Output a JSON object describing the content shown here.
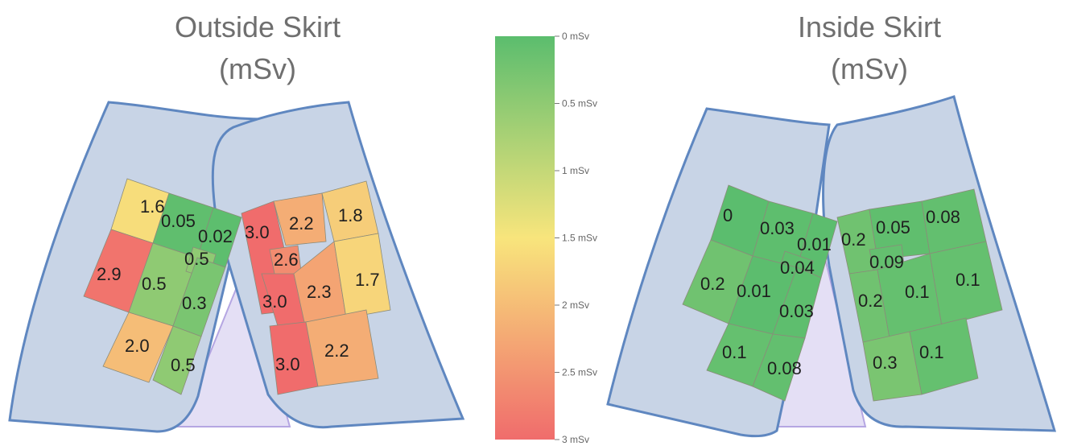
{
  "chart_data": {
    "type": "heatmap",
    "colorbar": {
      "ticks": [
        "0 mSv",
        "0.5 mSv",
        "1 mSv",
        "1.5 mSv",
        "2 mSv",
        "2.5 mSv",
        "3 mSv"
      ],
      "tick_values": [
        0,
        0.5,
        1,
        1.5,
        2,
        2.5,
        3
      ],
      "range": [
        0,
        3
      ],
      "colors": {
        "low": "#5bbd6e",
        "mid": "#f8e57c",
        "high": "#f06c6c"
      }
    },
    "panels": [
      {
        "title_line1": "Outside Skirt",
        "title_line2": "(mSv)",
        "regions": [
          {
            "label": "1.6",
            "value": 1.6
          },
          {
            "label": "0.05",
            "value": 0.05
          },
          {
            "label": "0.02",
            "value": 0.02
          },
          {
            "label": "2.9",
            "value": 2.9
          },
          {
            "label": "0.5",
            "value": 0.5
          },
          {
            "label": "0.5",
            "value": 0.5
          },
          {
            "label": "0.3",
            "value": 0.3
          },
          {
            "label": "2.0",
            "value": 2.0
          },
          {
            "label": "0.5",
            "value": 0.5
          },
          {
            "label": "3.0",
            "value": 3.0
          },
          {
            "label": "2.2",
            "value": 2.2
          },
          {
            "label": "1.8",
            "value": 1.8
          },
          {
            "label": "2.6",
            "value": 2.6
          },
          {
            "label": "3.0",
            "value": 3.0
          },
          {
            "label": "2.3",
            "value": 2.3
          },
          {
            "label": "1.7",
            "value": 1.7
          },
          {
            "label": "3.0",
            "value": 3.0
          },
          {
            "label": "2.2",
            "value": 2.2
          }
        ]
      },
      {
        "title_line1": "Inside Skirt",
        "title_line2": "(mSv)",
        "regions": [
          {
            "label": "0",
            "value": 0
          },
          {
            "label": "0.03",
            "value": 0.03
          },
          {
            "label": "0.01",
            "value": 0.01
          },
          {
            "label": "0.04",
            "value": 0.04
          },
          {
            "label": "0.2",
            "value": 0.2
          },
          {
            "label": "0.01",
            "value": 0.01
          },
          {
            "label": "0.03",
            "value": 0.03
          },
          {
            "label": "0.1",
            "value": 0.1
          },
          {
            "label": "0.08",
            "value": 0.08
          },
          {
            "label": "0.2",
            "value": 0.2
          },
          {
            "label": "0.05",
            "value": 0.05
          },
          {
            "label": "0.08",
            "value": 0.08
          },
          {
            "label": "0.09",
            "value": 0.09
          },
          {
            "label": "0.2",
            "value": 0.2
          },
          {
            "label": "0.1",
            "value": 0.1
          },
          {
            "label": "0.1",
            "value": 0.1
          },
          {
            "label": "0.3",
            "value": 0.3
          },
          {
            "label": "0.1",
            "value": 0.1
          }
        ]
      }
    ]
  },
  "colors": {
    "panel_fill": "#c8d4e6",
    "panel_stroke": "#5f87c0",
    "gap_fill": "#e4dff5",
    "gap_stroke": "#b5a6e2"
  }
}
